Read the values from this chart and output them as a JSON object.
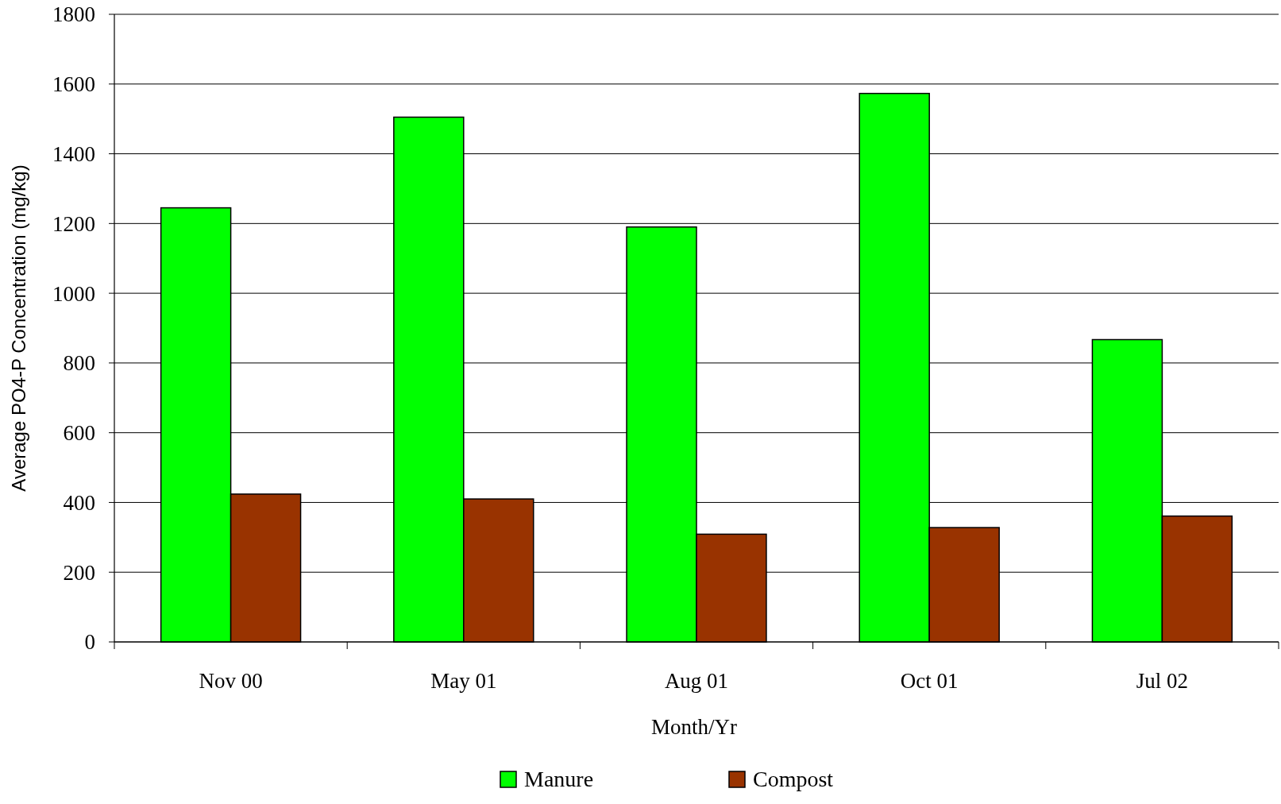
{
  "chart_data": {
    "type": "bar",
    "xlabel": "Month/Yr",
    "ylabel": "Average PO4-P Concentration (mg/kg)",
    "categories": [
      "Nov 00",
      "May 01",
      "Aug 01",
      "Oct 01",
      "Jul 02"
    ],
    "series": [
      {
        "name": "Manure",
        "color": "#00ff00",
        "values": [
          1245,
          1505,
          1190,
          1573,
          867
        ]
      },
      {
        "name": "Compost",
        "color": "#993300",
        "values": [
          424,
          410,
          309,
          328,
          361
        ]
      }
    ],
    "ylim": [
      0,
      1800
    ],
    "yticks": [
      0,
      200,
      400,
      600,
      800,
      1000,
      1200,
      1400,
      1600,
      1800
    ],
    "grid": "y",
    "legend": "bottom"
  }
}
